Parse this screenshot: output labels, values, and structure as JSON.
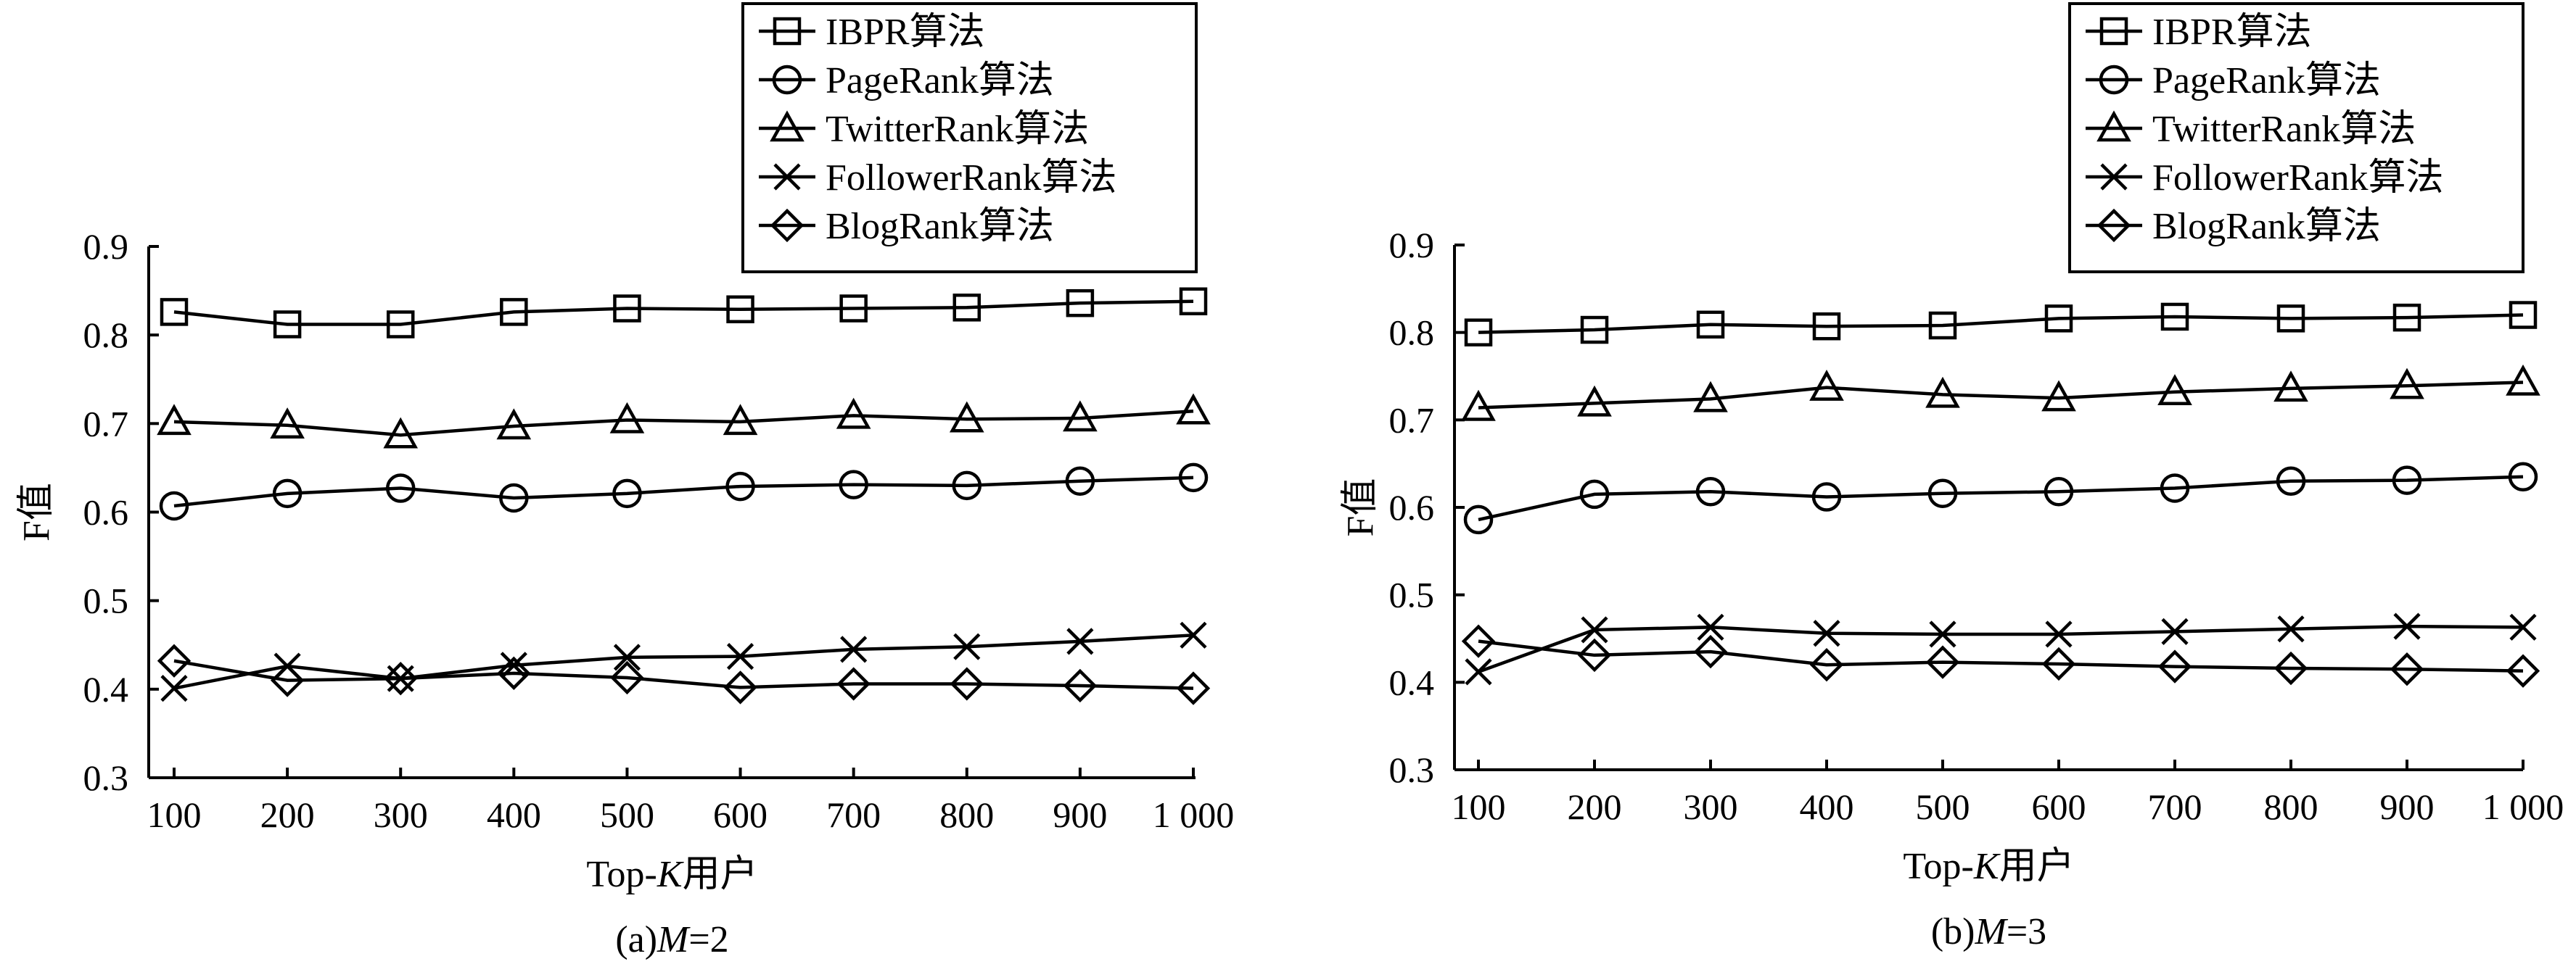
{
  "figure": {
    "panels": [
      "a",
      "b"
    ]
  },
  "chart_data": [
    {
      "type": "line",
      "caption_prefix": "(a)",
      "caption_var": "M",
      "caption_rest": "=2",
      "xlabel_prefix": "Top-",
      "xlabel_var": "K",
      "xlabel_rest": "用户",
      "ylabel": "F值",
      "categories": [
        "100",
        "200",
        "300",
        "400",
        "500",
        "600",
        "700",
        "800",
        "900",
        "1 000"
      ],
      "x": [
        100,
        200,
        300,
        400,
        500,
        600,
        700,
        800,
        900,
        1000
      ],
      "yticks": [
        "0.3",
        "0.4",
        "0.5",
        "0.6",
        "0.7",
        "0.8",
        "0.9"
      ],
      "ylim": [
        0.3,
        0.9
      ],
      "grid": false,
      "legend_position": "top-right",
      "series": [
        {
          "name": "IBPR算法",
          "marker": "square",
          "values": [
            0.826,
            0.812,
            0.812,
            0.826,
            0.83,
            0.829,
            0.83,
            0.831,
            0.836,
            0.838
          ]
        },
        {
          "name": "PageRank算法",
          "marker": "circle",
          "values": [
            0.607,
            0.621,
            0.627,
            0.616,
            0.621,
            0.629,
            0.631,
            0.63,
            0.635,
            0.639
          ]
        },
        {
          "name": "TwitterRank算法",
          "marker": "triangle",
          "values": [
            0.702,
            0.698,
            0.687,
            0.697,
            0.704,
            0.702,
            0.709,
            0.705,
            0.706,
            0.714
          ]
        },
        {
          "name": "FollowerRank算法",
          "marker": "cross",
          "values": [
            0.401,
            0.426,
            0.412,
            0.427,
            0.436,
            0.437,
            0.445,
            0.448,
            0.454,
            0.461
          ]
        },
        {
          "name": "BlogRank算法",
          "marker": "diamond",
          "values": [
            0.432,
            0.41,
            0.412,
            0.418,
            0.413,
            0.402,
            0.406,
            0.406,
            0.404,
            0.401
          ]
        }
      ]
    },
    {
      "type": "line",
      "caption_prefix": "(b)",
      "caption_var": "M",
      "caption_rest": "=3",
      "xlabel_prefix": "Top-",
      "xlabel_var": "K",
      "xlabel_rest": "用户",
      "ylabel": "F值",
      "categories": [
        "100",
        "200",
        "300",
        "400",
        "500",
        "600",
        "700",
        "800",
        "900",
        "1 000"
      ],
      "x": [
        100,
        200,
        300,
        400,
        500,
        600,
        700,
        800,
        900,
        1000
      ],
      "yticks": [
        "0.3",
        "0.4",
        "0.5",
        "0.6",
        "0.7",
        "0.8",
        "0.9"
      ],
      "ylim": [
        0.3,
        0.9
      ],
      "grid": false,
      "legend_position": "top-right",
      "series": [
        {
          "name": "IBPR算法",
          "marker": "square",
          "values": [
            0.8,
            0.803,
            0.809,
            0.807,
            0.808,
            0.816,
            0.818,
            0.816,
            0.817,
            0.82
          ]
        },
        {
          "name": "PageRank算法",
          "marker": "circle",
          "values": [
            0.586,
            0.615,
            0.618,
            0.612,
            0.616,
            0.618,
            0.622,
            0.63,
            0.631,
            0.635
          ]
        },
        {
          "name": "TwitterRank算法",
          "marker": "triangle",
          "values": [
            0.714,
            0.719,
            0.724,
            0.737,
            0.729,
            0.725,
            0.732,
            0.736,
            0.739,
            0.743
          ]
        },
        {
          "name": "FollowerRank算法",
          "marker": "cross",
          "values": [
            0.412,
            0.46,
            0.463,
            0.456,
            0.455,
            0.455,
            0.458,
            0.461,
            0.464,
            0.463
          ]
        },
        {
          "name": "BlogRank算法",
          "marker": "diamond",
          "values": [
            0.447,
            0.431,
            0.435,
            0.42,
            0.423,
            0.421,
            0.418,
            0.416,
            0.415,
            0.413
          ]
        }
      ]
    }
  ]
}
